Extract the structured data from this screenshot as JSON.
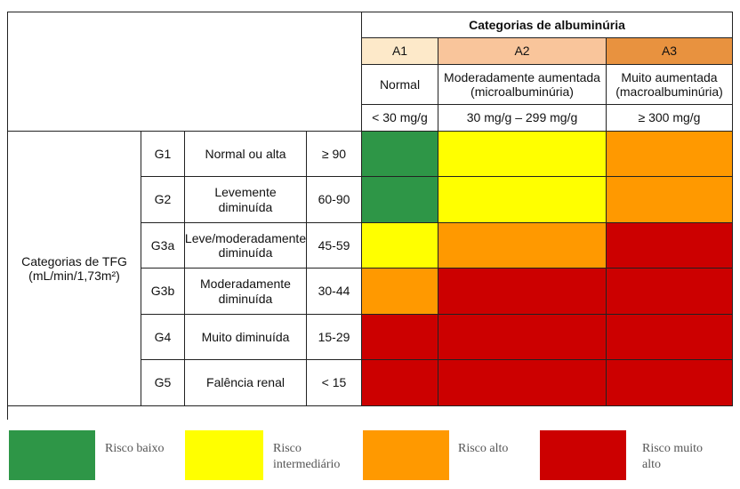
{
  "albuminuria": {
    "title": "Categorias de albuminúria",
    "columns": [
      {
        "code": "A1",
        "desc": "Normal",
        "range": "< 30 mg/g",
        "color": "#fde9c9"
      },
      {
        "code": "A2",
        "desc": "Moderadamente aumentada (microalbuminúria)",
        "range": "30 mg/g – 299 mg/g",
        "color": "#f9c59b"
      },
      {
        "code": "A3",
        "desc": "Muito aumentada (macroalbuminúria)",
        "range": "≥ 300 mg/g",
        "color": "#e8923f"
      }
    ]
  },
  "tfg": {
    "label": "Categorias de TFG (mL/min/1,73m²)",
    "rows": [
      {
        "code": "G1",
        "desc": "Normal ou alta",
        "range": "≥ 90",
        "risk": [
          "green",
          "yellow",
          "orange"
        ]
      },
      {
        "code": "G2",
        "desc": "Levemente diminuída",
        "range": "60-90",
        "risk": [
          "green",
          "yellow",
          "orange"
        ]
      },
      {
        "code": "G3a",
        "desc": "Leve/moderadamente diminuída",
        "range": "45-59",
        "risk": [
          "yellow",
          "orange",
          "red"
        ]
      },
      {
        "code": "G3b",
        "desc": "Moderadamente diminuída",
        "range": "30-44",
        "risk": [
          "orange",
          "red",
          "red"
        ]
      },
      {
        "code": "G4",
        "desc": "Muito diminuída",
        "range": "15-29",
        "risk": [
          "red",
          "red",
          "red"
        ]
      },
      {
        "code": "G5",
        "desc": "Falência renal",
        "range": "< 15",
        "risk": [
          "red",
          "red",
          "red"
        ]
      }
    ]
  },
  "legend": [
    {
      "label": "Risco baixo",
      "color": "#2e9647"
    },
    {
      "label": "Risco intermediário",
      "color": "#ffff00"
    },
    {
      "label": "Risco alto",
      "color": "#ff9900"
    },
    {
      "label": "Risco muito alto",
      "color": "#cc0000"
    }
  ],
  "colors": {
    "green": "#2e9647",
    "yellow": "#ffff00",
    "orange": "#ff9900",
    "red": "#cc0000"
  }
}
